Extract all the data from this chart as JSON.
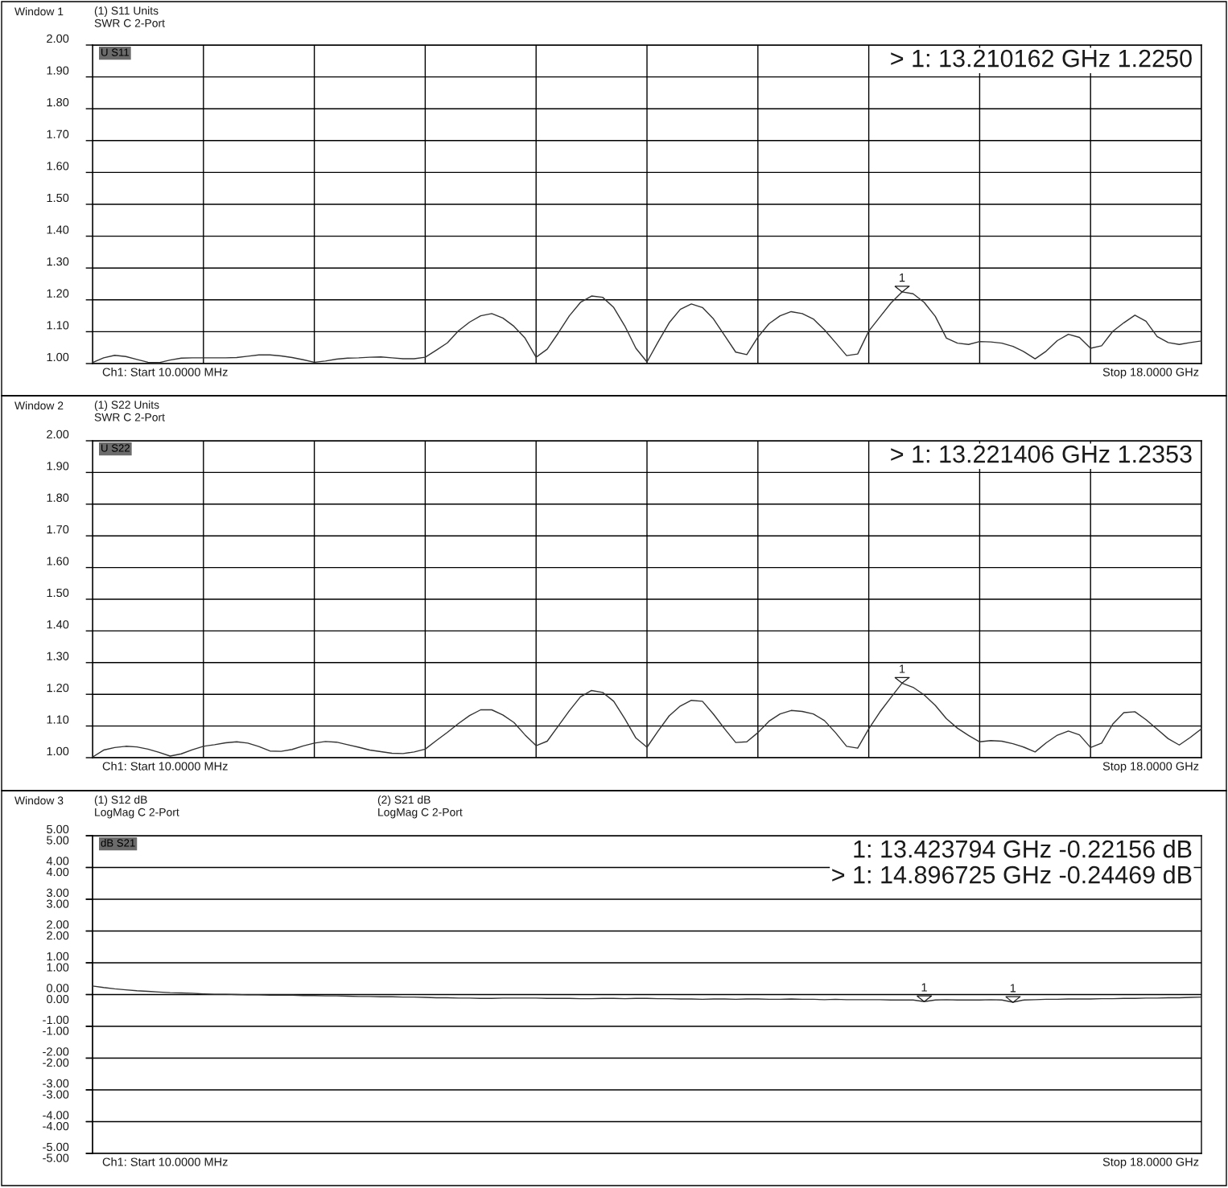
{
  "chart_data": [
    {
      "type": "line",
      "title": "Window 1",
      "annotations": [
        "(1) S11 Units\nSWR C 2-Port",
        "U S11",
        "> 1: 13.210162 GHz 1.2250",
        "Ch1: Start 10.0000 MHz",
        "Stop 18.0000 GHz",
        {
          "text": "1",
          "y": 1.225
        }
      ],
      "categories": [
        null,
        null,
        null,
        null,
        null,
        null,
        null,
        null,
        null,
        null,
        null,
        null,
        null,
        null,
        null,
        null,
        null,
        null,
        null,
        null,
        null,
        null,
        null,
        null,
        null,
        null,
        null,
        null,
        null,
        null,
        null,
        null,
        null,
        null,
        null,
        null,
        null,
        null,
        null,
        null,
        null,
        null,
        null,
        null,
        null,
        null,
        null,
        null,
        null,
        null,
        null,
        null,
        null,
        null,
        null,
        null,
        null,
        null,
        null,
        null,
        null,
        null,
        null,
        null,
        null,
        null,
        null,
        null,
        null,
        null,
        null,
        null,
        null,
        null,
        null,
        null,
        null,
        null,
        null,
        null,
        null,
        null,
        null,
        null,
        null,
        null,
        null,
        null,
        null,
        null,
        null,
        null,
        null,
        null,
        null,
        null,
        null,
        null,
        null,
        null,
        null
      ],
      "ylim": [
        1,
        2
      ],
      "yticks": [
        {
          "value": 1.0,
          "label": "1.00"
        },
        {
          "value": 1.1,
          "label": "1.10"
        },
        {
          "value": 1.2,
          "label": "1.20"
        },
        {
          "value": 1.3,
          "label": "1.30"
        },
        {
          "value": 1.4,
          "label": "1.40"
        },
        {
          "value": 1.5,
          "label": "1.50"
        },
        {
          "value": 1.6,
          "label": "1.60"
        },
        {
          "value": 1.7,
          "label": "1.70"
        },
        {
          "value": 1.8,
          "label": "1.80"
        },
        {
          "value": 1.9,
          "label": "1.90"
        },
        {
          "value": 2.0,
          "label": "2.00"
        }
      ],
      "tick_labels": "y",
      "grid": true,
      "line_style": "solid",
      "series": [
        {
          "color": "#333333",
          "values": [
            1.003,
            1.018,
            1.026,
            1.022,
            1.013,
            1.004,
            1.003,
            1.011,
            1.017,
            1.018,
            1.018,
            1.018,
            1.018,
            1.019,
            1.023,
            1.027,
            1.027,
            1.024,
            1.019,
            1.012,
            1.004,
            1.008,
            1.014,
            1.017,
            1.018,
            1.02,
            1.021,
            1.018,
            1.015,
            1.015,
            1.02,
            1.042,
            1.065,
            1.103,
            1.13,
            1.15,
            1.157,
            1.143,
            1.117,
            1.08,
            1.02,
            1.045,
            1.096,
            1.15,
            1.192,
            1.212,
            1.208,
            1.176,
            1.118,
            1.048,
            1.005,
            1.068,
            1.128,
            1.17,
            1.187,
            1.176,
            1.14,
            1.088,
            1.036,
            1.028,
            1.083,
            1.125,
            1.15,
            1.163,
            1.157,
            1.14,
            1.106,
            1.066,
            1.025,
            1.03,
            1.102,
            1.146,
            1.19,
            1.225,
            1.219,
            1.192,
            1.148,
            1.08,
            1.064,
            1.06,
            1.069,
            1.068,
            1.064,
            1.054,
            1.037,
            1.015,
            1.039,
            1.072,
            1.092,
            1.082,
            1.048,
            1.056,
            1.101,
            1.128,
            1.152,
            1.133,
            1.085,
            1.066,
            1.06,
            1.066,
            1.071
          ]
        }
      ]
    },
    {
      "type": "line",
      "title": "Window 2",
      "annotations": [
        "(1) S22 Units\nSWR C 2-Port",
        "U S22",
        "> 1: 13.221406 GHz 1.2353",
        "Ch1: Start 10.0000 MHz",
        "Stop 18.0000 GHz",
        {
          "text": "1",
          "y": 1.2353
        }
      ],
      "categories": [
        null,
        null,
        null,
        null,
        null,
        null,
        null,
        null,
        null,
        null,
        null,
        null,
        null,
        null,
        null,
        null,
        null,
        null,
        null,
        null,
        null,
        null,
        null,
        null,
        null,
        null,
        null,
        null,
        null,
        null,
        null,
        null,
        null,
        null,
        null,
        null,
        null,
        null,
        null,
        null,
        null,
        null,
        null,
        null,
        null,
        null,
        null,
        null,
        null,
        null,
        null,
        null,
        null,
        null,
        null,
        null,
        null,
        null,
        null,
        null,
        null,
        null,
        null,
        null,
        null,
        null,
        null,
        null,
        null,
        null,
        null,
        null,
        null,
        null,
        null,
        null,
        null,
        null,
        null,
        null,
        null,
        null,
        null,
        null,
        null,
        null,
        null,
        null,
        null,
        null,
        null,
        null,
        null,
        null,
        null,
        null,
        null,
        null,
        null,
        null,
        null
      ],
      "ylim": [
        1,
        2
      ],
      "yticks": [
        {
          "value": 1.0,
          "label": "1.00"
        },
        {
          "value": 1.1,
          "label": "1.10"
        },
        {
          "value": 1.2,
          "label": "1.20"
        },
        {
          "value": 1.3,
          "label": "1.30"
        },
        {
          "value": 1.4,
          "label": "1.40"
        },
        {
          "value": 1.5,
          "label": "1.50"
        },
        {
          "value": 1.6,
          "label": "1.60"
        },
        {
          "value": 1.7,
          "label": "1.70"
        },
        {
          "value": 1.8,
          "label": "1.80"
        },
        {
          "value": 1.9,
          "label": "1.90"
        },
        {
          "value": 2.0,
          "label": "2.00"
        }
      ],
      "tick_labels": "y",
      "grid": true,
      "line_style": "solid",
      "series": [
        {
          "color": "#333333",
          "values": [
            1.002,
            1.024,
            1.032,
            1.036,
            1.034,
            1.027,
            1.017,
            1.005,
            1.012,
            1.025,
            1.036,
            1.041,
            1.047,
            1.05,
            1.046,
            1.035,
            1.021,
            1.02,
            1.026,
            1.037,
            1.046,
            1.051,
            1.049,
            1.041,
            1.033,
            1.024,
            1.019,
            1.014,
            1.013,
            1.018,
            1.027,
            1.054,
            1.08,
            1.108,
            1.133,
            1.151,
            1.151,
            1.135,
            1.111,
            1.072,
            1.038,
            1.052,
            1.1,
            1.148,
            1.192,
            1.212,
            1.206,
            1.178,
            1.123,
            1.062,
            1.033,
            1.084,
            1.132,
            1.163,
            1.181,
            1.178,
            1.137,
            1.091,
            1.048,
            1.05,
            1.079,
            1.115,
            1.138,
            1.149,
            1.146,
            1.138,
            1.117,
            1.079,
            1.036,
            1.03,
            1.091,
            1.144,
            1.19,
            1.235,
            1.222,
            1.198,
            1.165,
            1.123,
            1.093,
            1.07,
            1.05,
            1.054,
            1.052,
            1.044,
            1.033,
            1.018,
            1.047,
            1.071,
            1.084,
            1.072,
            1.032,
            1.046,
            1.106,
            1.142,
            1.145,
            1.12,
            1.09,
            1.06,
            1.04,
            1.064,
            1.091
          ]
        }
      ]
    },
    {
      "type": "line",
      "title": "Window 3",
      "annotations": [
        "(1) S12 dB\nLogMag C 2-Port",
        "(2) S21 dB\nLogMag C 2-Port",
        "dB S21",
        "1: 13.423794 GHz -0.22156 dB",
        "> 1: 14.896725 GHz -0.24469 dB",
        "Ch1: Start 10.0000 MHz",
        "Stop 18.0000 GHz",
        {
          "text": "1",
          "y": -0.22156
        },
        {
          "text": "1",
          "y": -0.24469
        }
      ],
      "categories": [
        null,
        null,
        null,
        null,
        null,
        null,
        null,
        null,
        null,
        null,
        null,
        null,
        null,
        null,
        null,
        null,
        null,
        null,
        null,
        null,
        null,
        null,
        null,
        null,
        null,
        null,
        null,
        null,
        null,
        null,
        null,
        null,
        null,
        null,
        null,
        null,
        null,
        null,
        null,
        null,
        null,
        null,
        null,
        null,
        null,
        null,
        null,
        null,
        null,
        null,
        null,
        null,
        null,
        null,
        null,
        null,
        null,
        null,
        null,
        null,
        null,
        null,
        null,
        null,
        null,
        null,
        null,
        null,
        null,
        null,
        null,
        null,
        null,
        null,
        null,
        null,
        null,
        null,
        null,
        null,
        null,
        null,
        null,
        null,
        null,
        null,
        null,
        null,
        null,
        null,
        null,
        null,
        null,
        null,
        null,
        null,
        null,
        null,
        null,
        null,
        null
      ],
      "ylim": [
        -5,
        5
      ],
      "yticks": [
        {
          "value": 5,
          "label": "5.00"
        },
        {
          "value": 4,
          "label": "4.00"
        },
        {
          "value": 3,
          "label": "3.00"
        },
        {
          "value": 2,
          "label": "2.00"
        },
        {
          "value": 1,
          "label": "1.00"
        },
        {
          "value": 0,
          "label": "0.00"
        },
        {
          "value": -1,
          "label": "-1.00"
        },
        {
          "value": -2,
          "label": "-2.00"
        },
        {
          "value": -3,
          "label": "-3.00"
        },
        {
          "value": -4,
          "label": "-4.00"
        },
        {
          "value": -5,
          "label": "-5.00"
        }
      ],
      "y2lim": [
        -5,
        5
      ],
      "y2ticks": [
        {
          "value": 5,
          "label": "5.00"
        },
        {
          "value": 4,
          "label": "4.00"
        },
        {
          "value": 3,
          "label": "3.00"
        },
        {
          "value": 2,
          "label": "2.00"
        },
        {
          "value": 1,
          "label": "1.00"
        },
        {
          "value": 0,
          "label": "0.00"
        },
        {
          "value": -1,
          "label": "-1.00"
        },
        {
          "value": -2,
          "label": "-2.00"
        },
        {
          "value": -3,
          "label": "-3.00"
        },
        {
          "value": -4,
          "label": "-4.00"
        },
        {
          "value": -5,
          "label": "-5.00"
        }
      ],
      "tick_labels": "y",
      "grid": true,
      "line_style": "solid",
      "series": [
        {
          "color": "#333333",
          "axis": "y2",
          "values": [
            0.27,
            0.22,
            0.18,
            0.15,
            0.12,
            0.1,
            0.08,
            0.06,
            0.05,
            0.04,
            0.02,
            0.01,
            0.01,
            0.0,
            -0.01,
            -0.01,
            -0.02,
            -0.02,
            -0.02,
            -0.03,
            -0.03,
            -0.04,
            -0.04,
            -0.05,
            -0.06,
            -0.06,
            -0.07,
            -0.07,
            -0.08,
            -0.08,
            -0.09,
            -0.1,
            -0.1,
            -0.11,
            -0.11,
            -0.12,
            -0.12,
            -0.11,
            -0.11,
            -0.11,
            -0.11,
            -0.12,
            -0.12,
            -0.12,
            -0.13,
            -0.13,
            -0.12,
            -0.12,
            -0.13,
            -0.12,
            -0.12,
            -0.13,
            -0.13,
            -0.14,
            -0.14,
            -0.15,
            -0.14,
            -0.14,
            -0.15,
            -0.14,
            -0.14,
            -0.15,
            -0.15,
            -0.14,
            -0.15,
            -0.15,
            -0.16,
            -0.15,
            -0.16,
            -0.16,
            -0.16,
            -0.16,
            -0.17,
            -0.17,
            -0.17,
            -0.22,
            -0.17,
            -0.16,
            -0.17,
            -0.17,
            -0.17,
            -0.16,
            -0.17,
            -0.24,
            -0.17,
            -0.16,
            -0.15,
            -0.15,
            -0.14,
            -0.14,
            -0.14,
            -0.13,
            -0.13,
            -0.12,
            -0.12,
            -0.11,
            -0.11,
            -0.1,
            -0.1,
            -0.09,
            -0.08
          ]
        }
      ]
    }
  ]
}
